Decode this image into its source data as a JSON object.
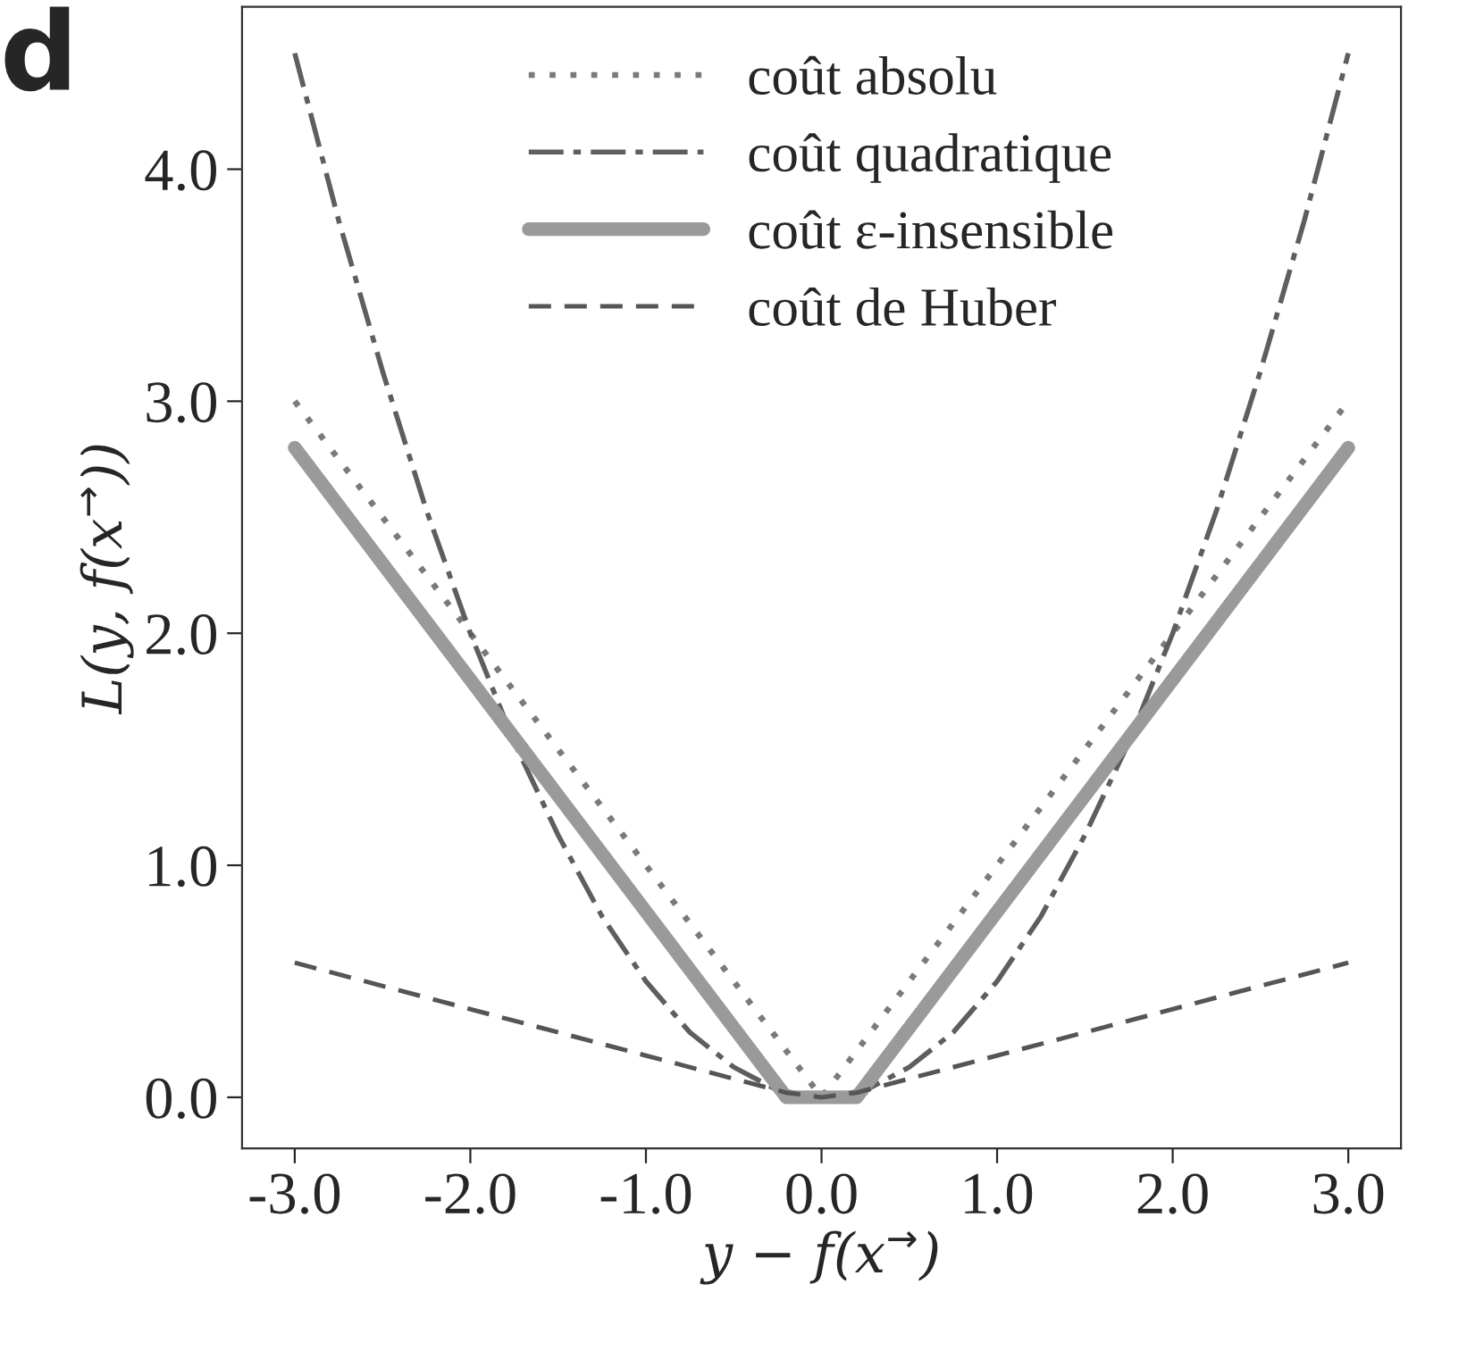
{
  "chart_data": {
    "type": "line",
    "xlabel": "y − f(x$^{→}$)",
    "ylabel": "L(y, f(x$^{→}$))",
    "annotations": [
      "d"
    ],
    "xlim": [
      -3.3,
      3.3
    ],
    "ylim": [
      -0.22,
      4.7
    ],
    "xticks": [
      {
        "value": -3,
        "label": "-3.0"
      },
      {
        "value": -2,
        "label": "-2.0"
      },
      {
        "value": -1,
        "label": "-1.0"
      },
      {
        "value": 0,
        "label": "0.0"
      },
      {
        "value": 1,
        "label": "1.0"
      },
      {
        "value": 2,
        "label": "2.0"
      },
      {
        "value": 3,
        "label": "3.0"
      }
    ],
    "yticks": [
      {
        "value": 0,
        "label": "0.0"
      },
      {
        "value": 1,
        "label": "1.0"
      },
      {
        "value": 2,
        "label": "2.0"
      },
      {
        "value": 3,
        "label": "3.0"
      },
      {
        "value": 4,
        "label": "4.0"
      }
    ],
    "grid": false,
    "legend": "top",
    "marker": "none",
    "series": [
      {
        "name": "coût absolu",
        "color": "#7a7a7a",
        "line_style": "dotted",
        "x": [
          -3,
          0,
          3
        ],
        "values": [
          3,
          0,
          3
        ]
      },
      {
        "name": "coût quadratique",
        "color": "#5e5e5e",
        "line_style": "dashdot",
        "x": [
          -3,
          -2.75,
          -2.5,
          -2.25,
          -2,
          -1.75,
          -1.5,
          -1.25,
          -1,
          -0.75,
          -0.5,
          -0.25,
          0,
          0.25,
          0.5,
          0.75,
          1,
          1.25,
          1.5,
          1.75,
          2,
          2.25,
          2.5,
          2.75,
          3
        ],
        "values": [
          4.5,
          3.78,
          3.13,
          2.53,
          2.0,
          1.53,
          1.13,
          0.78,
          0.5,
          0.28,
          0.13,
          0.03,
          0,
          0.03,
          0.13,
          0.28,
          0.5,
          0.78,
          1.13,
          1.53,
          2.0,
          2.53,
          3.13,
          3.78,
          4.5
        ]
      },
      {
        "name": "coût ε-insensible",
        "color": "#9a9a9a",
        "line_style": "solid",
        "x": [
          -3,
          -0.2,
          0.2,
          3
        ],
        "values": [
          2.8,
          0,
          0,
          2.8
        ]
      },
      {
        "name": "coût de Huber",
        "color": "#555555",
        "line_style": "dashed",
        "x": [
          -3,
          -0.2,
          0,
          0.2,
          3
        ],
        "values": [
          0.58,
          0.02,
          0,
          0.02,
          0.58
        ]
      }
    ]
  }
}
